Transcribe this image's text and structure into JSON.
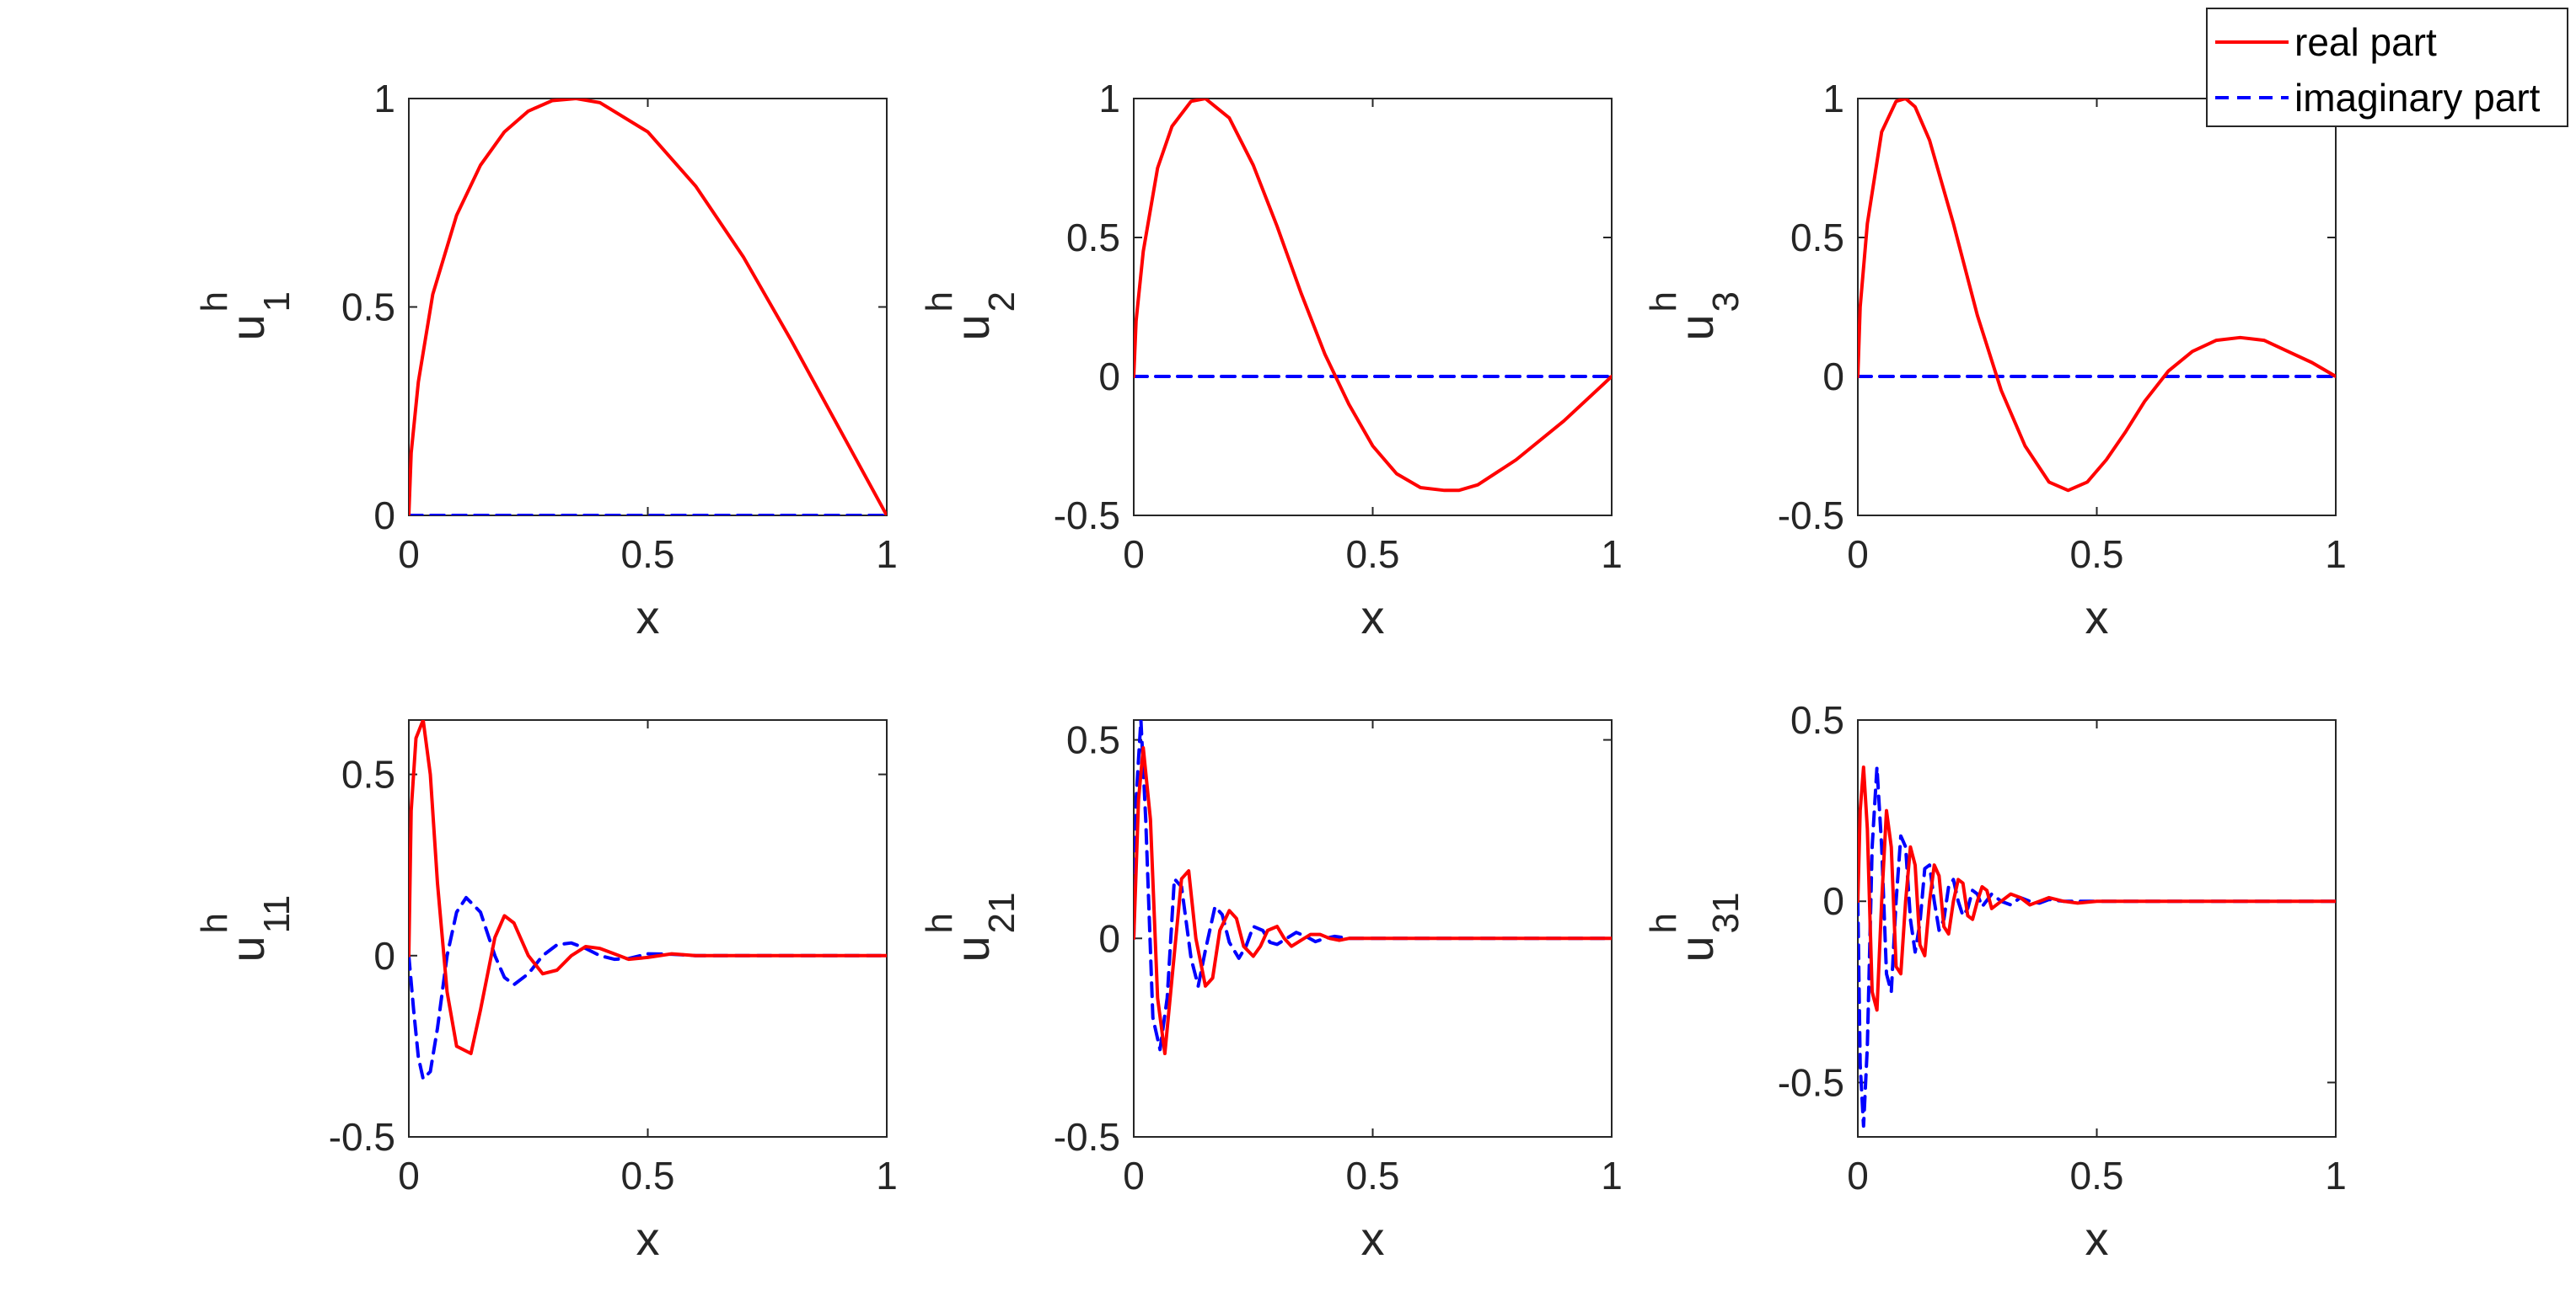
{
  "legend": {
    "entries": [
      {
        "label": "real part",
        "color": "#ff0000",
        "style": "solid"
      },
      {
        "label": "imaginary part",
        "color": "#0000ff",
        "style": "dashed"
      }
    ],
    "placement": "top-right"
  },
  "colors": {
    "real": "#ff0000",
    "imag": "#0000ff",
    "axis": "#262626"
  },
  "chart_data": [
    {
      "type": "line",
      "grid": false,
      "xlabel": "x",
      "ylabel_base": "u",
      "ylabel_sup": "h",
      "ylabel_sub": "1",
      "xlim": [
        0,
        1
      ],
      "ylim": [
        0,
        1
      ],
      "xticks": [
        "0",
        "0.5",
        "1"
      ],
      "yticks": [
        "0",
        "0.5",
        "1"
      ],
      "series": [
        {
          "name": "real part",
          "x": [
            0,
            0.005,
            0.02,
            0.05,
            0.1,
            0.15,
            0.2,
            0.25,
            0.3,
            0.35,
            0.4,
            0.5,
            0.6,
            0.7,
            0.8,
            0.9,
            1.0
          ],
          "y": [
            0,
            0.15,
            0.32,
            0.53,
            0.72,
            0.84,
            0.92,
            0.97,
            0.995,
            1.0,
            0.99,
            0.92,
            0.79,
            0.62,
            0.42,
            0.21,
            0
          ]
        },
        {
          "name": "imaginary part",
          "x": [
            0,
            1
          ],
          "y": [
            0,
            0
          ]
        }
      ]
    },
    {
      "type": "line",
      "grid": false,
      "xlabel": "x",
      "ylabel_base": "u",
      "ylabel_sup": "h",
      "ylabel_sub": "2",
      "xlim": [
        0,
        1
      ],
      "ylim": [
        -0.5,
        1
      ],
      "xticks": [
        "0",
        "0.5",
        "1"
      ],
      "yticks": [
        "-0.5",
        "0",
        "0.5",
        "1"
      ],
      "series": [
        {
          "name": "real part",
          "x": [
            0,
            0.005,
            0.02,
            0.05,
            0.08,
            0.12,
            0.15,
            0.2,
            0.25,
            0.3,
            0.35,
            0.4,
            0.45,
            0.5,
            0.55,
            0.6,
            0.65,
            0.68,
            0.72,
            0.8,
            0.9,
            1.0
          ],
          "y": [
            0,
            0.2,
            0.45,
            0.75,
            0.9,
            0.99,
            1.0,
            0.93,
            0.76,
            0.54,
            0.3,
            0.08,
            -0.1,
            -0.25,
            -0.35,
            -0.4,
            -0.41,
            -0.41,
            -0.39,
            -0.3,
            -0.16,
            0
          ]
        },
        {
          "name": "imaginary part",
          "x": [
            0,
            1
          ],
          "y": [
            0,
            0
          ]
        }
      ]
    },
    {
      "type": "line",
      "grid": false,
      "xlabel": "x",
      "ylabel_base": "u",
      "ylabel_sup": "h",
      "ylabel_sub": "3",
      "xlim": [
        0,
        1
      ],
      "ylim": [
        -0.5,
        1
      ],
      "xticks": [
        "0",
        "0.5",
        "1"
      ],
      "yticks": [
        "-0.5",
        "0",
        "0.5",
        "1"
      ],
      "series": [
        {
          "name": "real part",
          "x": [
            0,
            0.005,
            0.02,
            0.05,
            0.08,
            0.1,
            0.12,
            0.15,
            0.2,
            0.25,
            0.3,
            0.35,
            0.4,
            0.44,
            0.48,
            0.52,
            0.56,
            0.6,
            0.65,
            0.7,
            0.75,
            0.8,
            0.85,
            0.9,
            0.95,
            1.0
          ],
          "y": [
            0,
            0.25,
            0.55,
            0.88,
            0.99,
            1.0,
            0.97,
            0.85,
            0.55,
            0.22,
            -0.05,
            -0.25,
            -0.38,
            -0.41,
            -0.38,
            -0.3,
            -0.2,
            -0.09,
            0.02,
            0.09,
            0.13,
            0.14,
            0.13,
            0.09,
            0.05,
            0
          ]
        },
        {
          "name": "imaginary part",
          "x": [
            0,
            1
          ],
          "y": [
            0,
            0
          ]
        }
      ]
    },
    {
      "type": "line",
      "grid": false,
      "xlabel": "x",
      "ylabel_base": "u",
      "ylabel_sup": "h",
      "ylabel_sub": "11",
      "xlim": [
        0,
        1
      ],
      "ylim": [
        -0.5,
        0.65
      ],
      "xticks": [
        "0",
        "0.5",
        "1"
      ],
      "yticks": [
        "-0.5",
        "0",
        "0.5"
      ],
      "series": [
        {
          "name": "real part",
          "x": [
            0,
            0.005,
            0.015,
            0.03,
            0.045,
            0.06,
            0.08,
            0.1,
            0.13,
            0.15,
            0.18,
            0.2,
            0.22,
            0.25,
            0.28,
            0.31,
            0.34,
            0.37,
            0.4,
            0.43,
            0.46,
            0.5,
            0.55,
            0.6,
            0.7,
            0.8,
            0.9,
            1.0
          ],
          "y": [
            0,
            0.4,
            0.6,
            0.65,
            0.5,
            0.2,
            -0.1,
            -0.25,
            -0.27,
            -0.15,
            0.05,
            0.11,
            0.09,
            0.0,
            -0.05,
            -0.04,
            0.0,
            0.025,
            0.02,
            0.005,
            -0.01,
            -0.005,
            0.005,
            0.0,
            0,
            0,
            0,
            0
          ]
        },
        {
          "name": "imaginary part",
          "x": [
            0,
            0.01,
            0.02,
            0.03,
            0.045,
            0.06,
            0.08,
            0.1,
            0.12,
            0.15,
            0.18,
            0.2,
            0.22,
            0.25,
            0.28,
            0.31,
            0.34,
            0.37,
            0.4,
            0.43,
            0.46,
            0.5,
            0.55,
            0.6,
            0.7,
            0.8,
            0.9,
            1.0
          ],
          "y": [
            0,
            -0.15,
            -0.28,
            -0.34,
            -0.32,
            -0.2,
            0.0,
            0.12,
            0.16,
            0.12,
            0.0,
            -0.06,
            -0.08,
            -0.05,
            0.0,
            0.03,
            0.035,
            0.02,
            0.0,
            -0.01,
            -0.008,
            0.005,
            0.004,
            0.0,
            0,
            0,
            0,
            0
          ]
        }
      ]
    },
    {
      "type": "line",
      "grid": false,
      "xlabel": "x",
      "ylabel_base": "u",
      "ylabel_sup": "h",
      "ylabel_sub": "21",
      "xlim": [
        0,
        1
      ],
      "ylim": [
        -0.5,
        0.55
      ],
      "xticks": [
        "0",
        "0.5",
        "1"
      ],
      "yticks": [
        "-0.5",
        "0",
        "0.5"
      ],
      "series": [
        {
          "name": "real part",
          "x": [
            0,
            0.01,
            0.02,
            0.035,
            0.05,
            0.065,
            0.08,
            0.1,
            0.115,
            0.13,
            0.15,
            0.165,
            0.18,
            0.2,
            0.215,
            0.23,
            0.25,
            0.265,
            0.28,
            0.3,
            0.315,
            0.33,
            0.35,
            0.37,
            0.39,
            0.41,
            0.43,
            0.45,
            0.5,
            0.6,
            0.8,
            1.0
          ],
          "y": [
            0,
            0.35,
            0.48,
            0.3,
            -0.15,
            -0.29,
            -0.1,
            0.15,
            0.17,
            0.0,
            -0.12,
            -0.1,
            0.02,
            0.07,
            0.05,
            -0.02,
            -0.045,
            -0.02,
            0.02,
            0.03,
            0.0,
            -0.02,
            -0.005,
            0.01,
            0.01,
            0.0,
            -0.005,
            0.0,
            0.0,
            0,
            0,
            0
          ]
        },
        {
          "name": "imaginary part",
          "x": [
            0,
            0.005,
            0.015,
            0.025,
            0.04,
            0.055,
            0.07,
            0.085,
            0.1,
            0.12,
            0.135,
            0.15,
            0.17,
            0.185,
            0.2,
            0.22,
            0.235,
            0.25,
            0.27,
            0.285,
            0.3,
            0.32,
            0.34,
            0.36,
            0.38,
            0.4,
            0.42,
            0.45,
            0.5,
            0.6,
            0.8,
            1.0
          ],
          "y": [
            0,
            0.35,
            0.55,
            0.3,
            -0.2,
            -0.28,
            -0.15,
            0.15,
            0.13,
            -0.05,
            -0.12,
            -0.03,
            0.08,
            0.06,
            -0.01,
            -0.05,
            -0.02,
            0.03,
            0.02,
            -0.01,
            -0.015,
            0.0,
            0.015,
            0.005,
            -0.008,
            0.0,
            0.005,
            0.0,
            0.0,
            0,
            0,
            0
          ]
        }
      ]
    },
    {
      "type": "line",
      "grid": false,
      "xlabel": "x",
      "ylabel_base": "u",
      "ylabel_sup": "h",
      "ylabel_sub": "31",
      "xlim": [
        0,
        1
      ],
      "ylim": [
        -0.65,
        0.5
      ],
      "xticks": [
        "0",
        "0.5",
        "1"
      ],
      "yticks": [
        "-0.5",
        "0",
        "0.5"
      ],
      "series": [
        {
          "name": "real part",
          "x": [
            0,
            0.005,
            0.012,
            0.02,
            0.03,
            0.04,
            0.05,
            0.06,
            0.07,
            0.08,
            0.09,
            0.1,
            0.11,
            0.12,
            0.13,
            0.14,
            0.15,
            0.16,
            0.17,
            0.18,
            0.19,
            0.2,
            0.21,
            0.22,
            0.23,
            0.24,
            0.25,
            0.26,
            0.27,
            0.28,
            0.3,
            0.32,
            0.34,
            0.36,
            0.38,
            0.4,
            0.43,
            0.46,
            0.5,
            0.6,
            0.8,
            1.0
          ],
          "y": [
            0,
            0.25,
            0.37,
            0.2,
            -0.25,
            -0.3,
            0.0,
            0.25,
            0.15,
            -0.18,
            -0.2,
            0.0,
            0.15,
            0.1,
            -0.12,
            -0.15,
            0.0,
            0.1,
            0.07,
            -0.07,
            -0.09,
            0.0,
            0.06,
            0.05,
            -0.04,
            -0.05,
            0.0,
            0.04,
            0.03,
            -0.02,
            0.0,
            0.02,
            0.01,
            -0.01,
            0.0,
            0.01,
            0.0,
            -0.005,
            0.0,
            0,
            0,
            0
          ]
        },
        {
          "name": "imaginary part",
          "x": [
            0,
            0.005,
            0.012,
            0.02,
            0.03,
            0.04,
            0.05,
            0.06,
            0.07,
            0.08,
            0.09,
            0.1,
            0.11,
            0.12,
            0.13,
            0.14,
            0.15,
            0.16,
            0.17,
            0.18,
            0.19,
            0.2,
            0.21,
            0.22,
            0.23,
            0.24,
            0.25,
            0.26,
            0.28,
            0.3,
            0.32,
            0.34,
            0.36,
            0.38,
            0.4,
            0.43,
            0.46,
            0.5,
            0.6,
            0.8,
            1.0
          ],
          "y": [
            0,
            -0.45,
            -0.62,
            -0.4,
            0.15,
            0.37,
            0.15,
            -0.2,
            -0.25,
            0.0,
            0.18,
            0.15,
            -0.05,
            -0.14,
            -0.06,
            0.09,
            0.1,
            0.0,
            -0.08,
            -0.05,
            0.04,
            0.06,
            0.0,
            -0.04,
            -0.02,
            0.03,
            0.02,
            -0.015,
            0.02,
            0.0,
            -0.01,
            0.01,
            0.0,
            -0.005,
            0.005,
            0.0,
            0.0,
            0.0,
            0,
            0,
            0
          ]
        }
      ]
    }
  ]
}
